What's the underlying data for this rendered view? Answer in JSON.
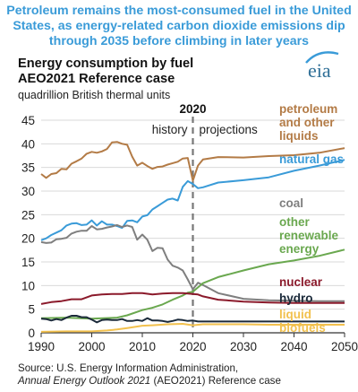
{
  "headline": [
    "Petroleum remains the most-consumed fuel in the United",
    "States, as energy-related carbon dioxide emissions dip",
    "through 2035 before climbing in later years"
  ],
  "logo": {
    "text": "eia",
    "color": "#2f6f97",
    "accent": "#3a9bd8"
  },
  "chart_data": {
    "type": "line",
    "title": [
      "Energy consumption by fuel",
      "AEO2021 Reference case"
    ],
    "ylabel": "quadrillion British thermal units",
    "xlim": [
      1990,
      2050
    ],
    "ylim": [
      0,
      45
    ],
    "x_ticks": [
      "1990",
      "2000",
      "2010",
      "2020",
      "2030",
      "2040",
      "2050"
    ],
    "y_ticks": [
      "0",
      "5",
      "10",
      "15",
      "20",
      "25",
      "30",
      "35",
      "40",
      "45"
    ],
    "divider": {
      "x": 2020,
      "label": "2020",
      "left_label": "history",
      "right_label": "projections"
    },
    "grid": true,
    "series": [
      {
        "name": "petroleum and other liquids",
        "color": "#b37b46",
        "label_lines": [
          "petroleum",
          "and other",
          "liquids"
        ],
        "x": [
          1990,
          1991,
          1992,
          1993,
          1994,
          1995,
          1996,
          1997,
          1998,
          1999,
          2000,
          2001,
          2002,
          2003,
          2004,
          2005,
          2006,
          2007,
          2008,
          2009,
          2010,
          2011,
          2012,
          2013,
          2014,
          2015,
          2016,
          2017,
          2018,
          2019,
          2020,
          2021,
          2022,
          2025,
          2030,
          2035,
          2040,
          2045,
          2050
        ],
        "y": [
          33.6,
          32.8,
          33.6,
          33.8,
          34.7,
          34.6,
          35.8,
          36.3,
          36.9,
          37.9,
          38.3,
          38.1,
          38.4,
          38.9,
          40.3,
          40.4,
          40.0,
          39.8,
          37.3,
          35.4,
          36.0,
          35.3,
          34.7,
          35.1,
          35.2,
          35.6,
          35.9,
          36.2,
          36.9,
          37.0,
          32.2,
          35.4,
          36.7,
          37.2,
          37.1,
          37.4,
          37.6,
          38.1,
          39.1
        ]
      },
      {
        "name": "natural gas",
        "color": "#3a9bd8",
        "label_lines": [
          "natural gas"
        ],
        "x": [
          1990,
          1991,
          1992,
          1993,
          1994,
          1995,
          1996,
          1997,
          1998,
          1999,
          2000,
          2001,
          2002,
          2003,
          2004,
          2005,
          2006,
          2007,
          2008,
          2009,
          2010,
          2011,
          2012,
          2013,
          2014,
          2015,
          2016,
          2017,
          2018,
          2019,
          2020,
          2021,
          2022,
          2025,
          2030,
          2035,
          2040,
          2045,
          2050
        ],
        "y": [
          19.6,
          20.0,
          20.7,
          21.2,
          21.7,
          22.7,
          23.1,
          23.2,
          22.8,
          22.9,
          23.8,
          22.7,
          23.6,
          22.9,
          22.9,
          22.6,
          22.2,
          23.7,
          23.8,
          23.4,
          24.6,
          24.9,
          26.1,
          26.8,
          27.5,
          28.2,
          28.4,
          28.0,
          30.9,
          32.1,
          31.5,
          30.6,
          30.8,
          31.8,
          32.3,
          32.9,
          34.3,
          35.4,
          36.6
        ]
      },
      {
        "name": "coal",
        "color": "#7f7f7f",
        "label_lines": [
          "coal"
        ],
        "x": [
          1990,
          1991,
          1992,
          1993,
          1994,
          1995,
          1996,
          1997,
          1998,
          1999,
          2000,
          2001,
          2002,
          2003,
          2004,
          2005,
          2006,
          2007,
          2008,
          2009,
          2010,
          2011,
          2012,
          2013,
          2014,
          2015,
          2016,
          2017,
          2018,
          2019,
          2020,
          2021,
          2022,
          2025,
          2030,
          2035,
          2040,
          2045,
          2050
        ],
        "y": [
          19.2,
          19.0,
          19.1,
          19.8,
          19.9,
          20.1,
          21.0,
          21.4,
          21.6,
          21.6,
          22.6,
          21.9,
          22.0,
          22.3,
          22.5,
          22.8,
          22.4,
          22.7,
          22.4,
          19.7,
          20.8,
          19.7,
          17.3,
          18.0,
          17.9,
          15.5,
          14.2,
          13.8,
          13.2,
          11.3,
          9.2,
          10.6,
          10.1,
          8.4,
          7.2,
          6.9,
          6.8,
          6.7,
          6.7
        ]
      },
      {
        "name": "other renewable energy",
        "color": "#6aa84f",
        "label_lines": [
          "other",
          "renewable",
          "energy"
        ],
        "x": [
          1990,
          1995,
          2000,
          2005,
          2007,
          2010,
          2012,
          2014,
          2016,
          2018,
          2019,
          2020,
          2021,
          2022,
          2025,
          2030,
          2035,
          2040,
          2045,
          2050
        ],
        "y": [
          3.1,
          3.2,
          3.0,
          3.2,
          3.7,
          4.8,
          5.3,
          6.0,
          7.0,
          7.9,
          8.5,
          8.7,
          9.6,
          10.5,
          11.8,
          13.2,
          14.5,
          15.3,
          16.3,
          17.6
        ]
      },
      {
        "name": "nuclear",
        "color": "#8b1a2b",
        "label_lines": [
          "nuclear"
        ],
        "x": [
          1990,
          1992,
          1994,
          1996,
          1998,
          2000,
          2002,
          2004,
          2006,
          2008,
          2010,
          2012,
          2014,
          2016,
          2018,
          2020,
          2021,
          2022,
          2025,
          2030,
          2035,
          2040,
          2045,
          2050
        ],
        "y": [
          6.1,
          6.5,
          6.7,
          7.1,
          7.1,
          7.9,
          8.1,
          8.2,
          8.2,
          8.4,
          8.4,
          8.1,
          8.3,
          8.4,
          8.4,
          8.2,
          8.1,
          7.7,
          7.0,
          6.6,
          6.4,
          6.3,
          6.3,
          6.3
        ]
      },
      {
        "name": "hydro",
        "color": "#1b2a3a",
        "label_lines": [
          "hydro"
        ],
        "x": [
          1990,
          1991,
          1992,
          1993,
          1994,
          1995,
          1996,
          1997,
          1998,
          1999,
          2000,
          2001,
          2002,
          2003,
          2004,
          2005,
          2006,
          2007,
          2008,
          2009,
          2010,
          2011,
          2012,
          2013,
          2014,
          2015,
          2016,
          2017,
          2018,
          2019,
          2020,
          2021,
          2022,
          2025,
          2030,
          2035,
          2040,
          2045,
          2050
        ],
        "y": [
          3.0,
          2.9,
          2.6,
          2.9,
          2.7,
          3.2,
          3.6,
          3.6,
          3.3,
          3.3,
          2.8,
          2.2,
          2.7,
          2.8,
          2.7,
          2.7,
          2.9,
          2.5,
          2.5,
          2.7,
          2.5,
          3.1,
          2.6,
          2.6,
          2.5,
          2.3,
          2.5,
          2.8,
          2.7,
          2.5,
          2.6,
          2.4,
          2.4,
          2.4,
          2.4,
          2.4,
          2.4,
          2.4,
          2.4
        ]
      },
      {
        "name": "liquid biofuels",
        "color": "#f2c14e",
        "label_lines": [
          "liquid",
          "biofuels"
        ],
        "x": [
          1990,
          1995,
          2000,
          2003,
          2005,
          2007,
          2010,
          2012,
          2015,
          2018,
          2020,
          2022,
          2025,
          2030,
          2035,
          2040,
          2045,
          2050
        ],
        "y": [
          0.2,
          0.3,
          0.3,
          0.5,
          0.7,
          1.0,
          1.5,
          1.6,
          1.8,
          1.9,
          1.6,
          1.8,
          1.8,
          1.8,
          1.7,
          1.7,
          1.7,
          1.7
        ]
      }
    ]
  },
  "source": {
    "line1": "Source: U.S. Energy Information Administration,",
    "line2_italic": "Annual Energy Outlook 2021",
    "line2_rest": " (AEO2021) Reference case"
  }
}
